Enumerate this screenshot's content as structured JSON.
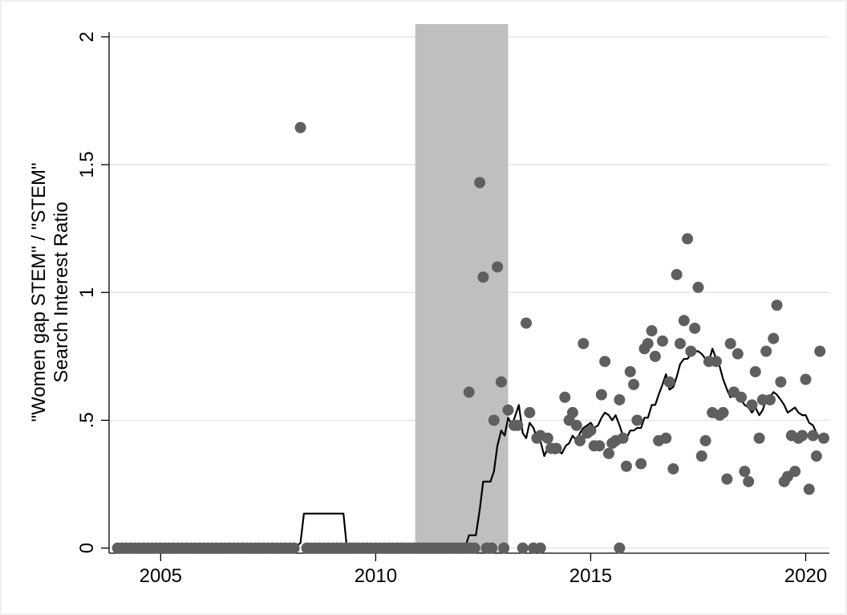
{
  "chart_data": {
    "type": "scatter",
    "ylabel": [
      "\"Women gap STEM\" / \"STEM\"",
      "Search Interest Ratio"
    ],
    "xlabel": "",
    "xlim": [
      2003.8,
      2020.55
    ],
    "ylim": [
      -0.02,
      2.05
    ],
    "x_ticks": [
      2005,
      2010,
      2015,
      2020
    ],
    "x_tick_labels": [
      "2005",
      "2010",
      "2015",
      "2020"
    ],
    "y_ticks": [
      0,
      0.5,
      1,
      1.5,
      2
    ],
    "y_tick_labels": [
      "0",
      ".5",
      "1",
      "1.5",
      "2"
    ],
    "grid": true,
    "shaded_region": {
      "x_start": 2010.92,
      "x_end": 2013.08,
      "color": "#bfbfbf"
    },
    "colors": {
      "points": "#5f5f5f",
      "line": "#000000",
      "grid": "#e6e6e6"
    },
    "series": [
      {
        "type": "scatter",
        "points": [
          [
            2004.0,
            0
          ],
          [
            2004.1,
            0
          ],
          [
            2004.2,
            0
          ],
          [
            2004.3,
            0
          ],
          [
            2004.4,
            0
          ],
          [
            2004.5,
            0
          ],
          [
            2004.6,
            0
          ],
          [
            2004.7,
            0
          ],
          [
            2004.8,
            0
          ],
          [
            2004.9,
            0
          ],
          [
            2005.0,
            0
          ],
          [
            2005.1,
            0
          ],
          [
            2005.2,
            0
          ],
          [
            2005.3,
            0
          ],
          [
            2005.4,
            0
          ],
          [
            2005.5,
            0
          ],
          [
            2005.6,
            0
          ],
          [
            2005.7,
            0
          ],
          [
            2005.8,
            0
          ],
          [
            2005.9,
            0
          ],
          [
            2006.0,
            0
          ],
          [
            2006.1,
            0
          ],
          [
            2006.2,
            0
          ],
          [
            2006.3,
            0
          ],
          [
            2006.4,
            0
          ],
          [
            2006.5,
            0
          ],
          [
            2006.6,
            0
          ],
          [
            2006.7,
            0
          ],
          [
            2006.8,
            0
          ],
          [
            2006.9,
            0
          ],
          [
            2007.0,
            0
          ],
          [
            2007.1,
            0
          ],
          [
            2007.2,
            0
          ],
          [
            2007.3,
            0
          ],
          [
            2007.4,
            0
          ],
          [
            2007.5,
            0
          ],
          [
            2007.6,
            0
          ],
          [
            2007.7,
            0
          ],
          [
            2007.8,
            0
          ],
          [
            2007.9,
            0
          ],
          [
            2008.0,
            0
          ],
          [
            2008.1,
            0
          ],
          [
            2008.25,
            1.645
          ],
          [
            2008.4,
            0
          ],
          [
            2008.5,
            0
          ],
          [
            2008.6,
            0
          ],
          [
            2008.7,
            0
          ],
          [
            2008.8,
            0
          ],
          [
            2008.9,
            0
          ],
          [
            2009.0,
            0
          ],
          [
            2009.1,
            0
          ],
          [
            2009.2,
            0
          ],
          [
            2009.3,
            0
          ],
          [
            2009.4,
            0
          ],
          [
            2009.5,
            0
          ],
          [
            2009.6,
            0
          ],
          [
            2009.7,
            0
          ],
          [
            2009.8,
            0
          ],
          [
            2009.9,
            0
          ],
          [
            2010.0,
            0
          ],
          [
            2010.1,
            0
          ],
          [
            2010.2,
            0
          ],
          [
            2010.3,
            0
          ],
          [
            2010.4,
            0
          ],
          [
            2010.5,
            0
          ],
          [
            2010.6,
            0
          ],
          [
            2010.7,
            0
          ],
          [
            2010.8,
            0
          ],
          [
            2010.9,
            0
          ],
          [
            2011.0,
            0
          ],
          [
            2011.1,
            0
          ],
          [
            2011.2,
            0
          ],
          [
            2011.3,
            0
          ],
          [
            2011.4,
            0
          ],
          [
            2011.5,
            0
          ],
          [
            2011.6,
            0
          ],
          [
            2011.7,
            0
          ],
          [
            2011.8,
            0
          ],
          [
            2011.9,
            0
          ],
          [
            2012.0,
            0
          ],
          [
            2012.1,
            0
          ],
          [
            2012.2,
            0
          ],
          [
            2012.3,
            0
          ],
          [
            2012.58,
            0
          ],
          [
            2012.7,
            0
          ],
          [
            2012.98,
            0
          ],
          [
            2012.17,
            0.61
          ],
          [
            2012.42,
            1.43
          ],
          [
            2012.5,
            1.06
          ],
          [
            2012.83,
            1.1
          ],
          [
            2012.75,
            0.5
          ],
          [
            2012.92,
            0.65
          ],
          [
            2013.08,
            0.54
          ],
          [
            2013.22,
            0.48
          ],
          [
            2013.3,
            0.48
          ],
          [
            2013.5,
            0.88
          ],
          [
            2013.58,
            0.53
          ],
          [
            2013.75,
            0.43
          ],
          [
            2013.83,
            0.44
          ],
          [
            2014.0,
            0.43
          ],
          [
            2014.08,
            0.39
          ],
          [
            2014.2,
            0.39
          ],
          [
            2014.4,
            0.59
          ],
          [
            2014.5,
            0.5
          ],
          [
            2014.58,
            0.53
          ],
          [
            2014.67,
            0.48
          ],
          [
            2014.75,
            0.42
          ],
          [
            2014.83,
            0.8
          ],
          [
            2014.92,
            0.45
          ],
          [
            2015.0,
            0.46
          ],
          [
            2015.08,
            0.4
          ],
          [
            2015.2,
            0.4
          ],
          [
            2015.25,
            0.6
          ],
          [
            2015.33,
            0.73
          ],
          [
            2015.42,
            0.37
          ],
          [
            2015.5,
            0.41
          ],
          [
            2015.58,
            0.42
          ],
          [
            2015.67,
            0.58
          ],
          [
            2015.75,
            0.43
          ],
          [
            2015.83,
            0.32
          ],
          [
            2015.92,
            0.69
          ],
          [
            2016.0,
            0.64
          ],
          [
            2016.08,
            0.5
          ],
          [
            2016.17,
            0.33
          ],
          [
            2016.25,
            0.78
          ],
          [
            2016.33,
            0.8
          ],
          [
            2016.42,
            0.85
          ],
          [
            2016.5,
            0.75
          ],
          [
            2016.58,
            0.42
          ],
          [
            2016.67,
            0.81
          ],
          [
            2016.75,
            0.43
          ],
          [
            2016.83,
            0.65
          ],
          [
            2016.92,
            0.31
          ],
          [
            2017.0,
            1.07
          ],
          [
            2017.08,
            0.8
          ],
          [
            2017.17,
            0.89
          ],
          [
            2017.25,
            1.21
          ],
          [
            2017.33,
            0.77
          ],
          [
            2017.42,
            0.86
          ],
          [
            2017.5,
            1.02
          ],
          [
            2017.58,
            0.36
          ],
          [
            2017.67,
            0.42
          ],
          [
            2017.75,
            0.73
          ],
          [
            2017.83,
            0.53
          ],
          [
            2017.92,
            0.73
          ],
          [
            2018.0,
            0.52
          ],
          [
            2018.08,
            0.53
          ],
          [
            2018.17,
            0.27
          ],
          [
            2018.25,
            0.8
          ],
          [
            2018.33,
            0.61
          ],
          [
            2018.42,
            0.76
          ],
          [
            2018.5,
            0.59
          ],
          [
            2018.58,
            0.3
          ],
          [
            2018.67,
            0.26
          ],
          [
            2018.75,
            0.56
          ],
          [
            2018.83,
            0.69
          ],
          [
            2018.92,
            0.43
          ],
          [
            2019.0,
            0.58
          ],
          [
            2019.08,
            0.77
          ],
          [
            2019.17,
            0.58
          ],
          [
            2019.25,
            0.82
          ],
          [
            2019.33,
            0.95
          ],
          [
            2019.42,
            0.65
          ],
          [
            2019.5,
            0.26
          ],
          [
            2019.58,
            0.28
          ],
          [
            2019.67,
            0.44
          ],
          [
            2019.75,
            0.3
          ],
          [
            2019.83,
            0.43
          ],
          [
            2019.92,
            0.44
          ],
          [
            2020.0,
            0.66
          ],
          [
            2020.08,
            0.23
          ],
          [
            2020.17,
            0.44
          ],
          [
            2020.25,
            0.36
          ],
          [
            2020.33,
            0.77
          ],
          [
            2020.42,
            0.43
          ],
          [
            2013.42,
            0
          ],
          [
            2013.67,
            0
          ],
          [
            2013.83,
            0
          ],
          [
            2015.67,
            0
          ]
        ]
      },
      {
        "type": "line",
        "points": [
          [
            2004.92,
            0
          ],
          [
            2008.1,
            0
          ],
          [
            2008.25,
            0.02
          ],
          [
            2008.33,
            0.135
          ],
          [
            2009.25,
            0.135
          ],
          [
            2009.33,
            0
          ],
          [
            2012.08,
            0
          ],
          [
            2012.17,
            0.05
          ],
          [
            2012.33,
            0.05
          ],
          [
            2012.42,
            0.15
          ],
          [
            2012.5,
            0.26
          ],
          [
            2012.67,
            0.26
          ],
          [
            2012.75,
            0.3
          ],
          [
            2012.83,
            0.4
          ],
          [
            2012.92,
            0.46
          ],
          [
            2013.0,
            0.44
          ],
          [
            2013.08,
            0.51
          ],
          [
            2013.17,
            0.48
          ],
          [
            2013.25,
            0.52
          ],
          [
            2013.33,
            0.56
          ],
          [
            2013.42,
            0.45
          ],
          [
            2013.5,
            0.43
          ],
          [
            2013.58,
            0.49
          ],
          [
            2013.67,
            0.47
          ],
          [
            2013.75,
            0.43
          ],
          [
            2013.83,
            0.42
          ],
          [
            2013.92,
            0.36
          ],
          [
            2014.0,
            0.39
          ],
          [
            2014.08,
            0.38
          ],
          [
            2014.17,
            0.37
          ],
          [
            2014.25,
            0.38
          ],
          [
            2014.33,
            0.37
          ],
          [
            2014.42,
            0.4
          ],
          [
            2014.5,
            0.41
          ],
          [
            2014.58,
            0.44
          ],
          [
            2014.67,
            0.42
          ],
          [
            2014.75,
            0.45
          ],
          [
            2014.83,
            0.47
          ],
          [
            2014.92,
            0.48
          ],
          [
            2015.0,
            0.49
          ],
          [
            2015.08,
            0.47
          ],
          [
            2015.17,
            0.48
          ],
          [
            2015.25,
            0.51
          ],
          [
            2015.33,
            0.53
          ],
          [
            2015.42,
            0.52
          ],
          [
            2015.5,
            0.5
          ],
          [
            2015.58,
            0.52
          ],
          [
            2015.67,
            0.48
          ],
          [
            2015.75,
            0.44
          ],
          [
            2015.83,
            0.43
          ],
          [
            2015.92,
            0.46
          ],
          [
            2016.0,
            0.46
          ],
          [
            2016.08,
            0.47
          ],
          [
            2016.17,
            0.47
          ],
          [
            2016.25,
            0.51
          ],
          [
            2016.33,
            0.51
          ],
          [
            2016.42,
            0.56
          ],
          [
            2016.5,
            0.56
          ],
          [
            2016.58,
            0.6
          ],
          [
            2016.67,
            0.64
          ],
          [
            2016.75,
            0.68
          ],
          [
            2016.83,
            0.62
          ],
          [
            2016.92,
            0.63
          ],
          [
            2017.0,
            0.67
          ],
          [
            2017.08,
            0.72
          ],
          [
            2017.17,
            0.74
          ],
          [
            2017.25,
            0.74
          ],
          [
            2017.33,
            0.76
          ],
          [
            2017.42,
            0.77
          ],
          [
            2017.5,
            0.77
          ],
          [
            2017.58,
            0.76
          ],
          [
            2017.67,
            0.74
          ],
          [
            2017.75,
            0.73
          ],
          [
            2017.83,
            0.78
          ],
          [
            2017.92,
            0.74
          ],
          [
            2018.0,
            0.71
          ],
          [
            2018.08,
            0.66
          ],
          [
            2018.17,
            0.62
          ],
          [
            2018.25,
            0.59
          ],
          [
            2018.33,
            0.6
          ],
          [
            2018.42,
            0.59
          ],
          [
            2018.5,
            0.58
          ],
          [
            2018.58,
            0.56
          ],
          [
            2018.67,
            0.55
          ],
          [
            2018.75,
            0.53
          ],
          [
            2018.83,
            0.55
          ],
          [
            2018.92,
            0.52
          ],
          [
            2019.0,
            0.54
          ],
          [
            2019.08,
            0.58
          ],
          [
            2019.17,
            0.59
          ],
          [
            2019.25,
            0.61
          ],
          [
            2019.33,
            0.6
          ],
          [
            2019.42,
            0.58
          ],
          [
            2019.5,
            0.56
          ],
          [
            2019.58,
            0.53
          ],
          [
            2019.67,
            0.54
          ],
          [
            2019.75,
            0.55
          ],
          [
            2019.83,
            0.53
          ],
          [
            2019.92,
            0.52
          ],
          [
            2020.0,
            0.52
          ],
          [
            2020.08,
            0.49
          ],
          [
            2020.17,
            0.48
          ],
          [
            2020.25,
            0.45
          ],
          [
            2020.33,
            0.43
          ],
          [
            2020.42,
            0.42
          ]
        ]
      }
    ]
  }
}
